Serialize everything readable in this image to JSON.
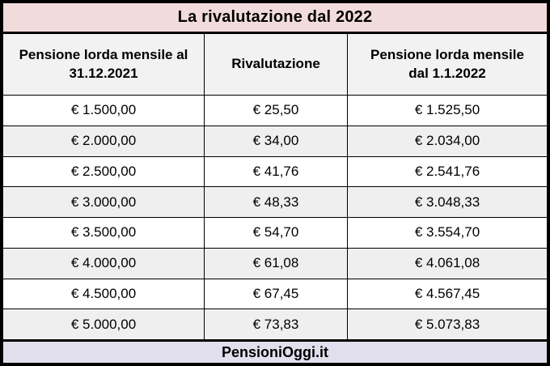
{
  "title": "La rivalutazione dal 2022",
  "table": {
    "columns": [
      "Pensione lorda mensile al 31.12.2021",
      "Rivalutazione",
      "Pensione lorda mensile dal 1.1.2022"
    ],
    "rows": [
      [
        "€ 1.500,00",
        "€ 25,50",
        "€ 1.525,50"
      ],
      [
        "€ 2.000,00",
        "€ 34,00",
        "€ 2.034,00"
      ],
      [
        "€ 2.500,00",
        "€ 41,76",
        "€ 2.541,76"
      ],
      [
        "€ 3.000,00",
        "€ 48,33",
        "€ 3.048,33"
      ],
      [
        "€ 3.500,00",
        "€ 54,70",
        "€ 3.554,70"
      ],
      [
        "€ 4.000,00",
        "€ 61,08",
        "€ 4.061,08"
      ],
      [
        "€ 4.500,00",
        "€ 67,45",
        "€ 4.567,45"
      ],
      [
        "€ 5.000,00",
        "€ 73,83",
        "€ 5.073,83"
      ]
    ]
  },
  "footer": {
    "brand": "PensioniOggi.it"
  },
  "colors": {
    "title_bg": "#f2dcdb",
    "header_bg": "#f2f2f2",
    "alt_row_bg": "#efefef",
    "footer_bg": "#e1deed",
    "border": "#000000"
  },
  "chart_data": {
    "type": "table",
    "title": "La rivalutazione dal 2022",
    "columns": [
      "Pensione lorda mensile al 31.12.2021",
      "Rivalutazione",
      "Pensione lorda mensile dal 1.1.2022"
    ],
    "rows": [
      [
        "€ 1.500,00",
        "€ 25,50",
        "€ 1.525,50"
      ],
      [
        "€ 2.000,00",
        "€ 34,00",
        "€ 2.034,00"
      ],
      [
        "€ 2.500,00",
        "€ 41,76",
        "€ 2.541,76"
      ],
      [
        "€ 3.000,00",
        "€ 48,33",
        "€ 3.048,33"
      ],
      [
        "€ 3.500,00",
        "€ 54,70",
        "€ 3.554,70"
      ],
      [
        "€ 4.000,00",
        "€ 61,08",
        "€ 4.061,08"
      ],
      [
        "€ 4.500,00",
        "€ 67,45",
        "€ 4.567,45"
      ],
      [
        "€ 5.000,00",
        "€ 73,83",
        "€ 5.073,83"
      ]
    ],
    "series": [
      {
        "name": "Pensione lorda mensile al 31.12.2021",
        "values": [
          1500.0,
          2000.0,
          2500.0,
          3000.0,
          3500.0,
          4000.0,
          4500.0,
          5000.0
        ]
      },
      {
        "name": "Rivalutazione",
        "values": [
          25.5,
          34.0,
          41.76,
          48.33,
          54.7,
          61.08,
          67.45,
          73.83
        ]
      },
      {
        "name": "Pensione lorda mensile dal 1.1.2022",
        "values": [
          1525.5,
          2034.0,
          2541.76,
          3048.33,
          3554.7,
          4061.08,
          4567.45,
          5073.83
        ]
      }
    ],
    "source_label": "PensioniOggi.it"
  }
}
